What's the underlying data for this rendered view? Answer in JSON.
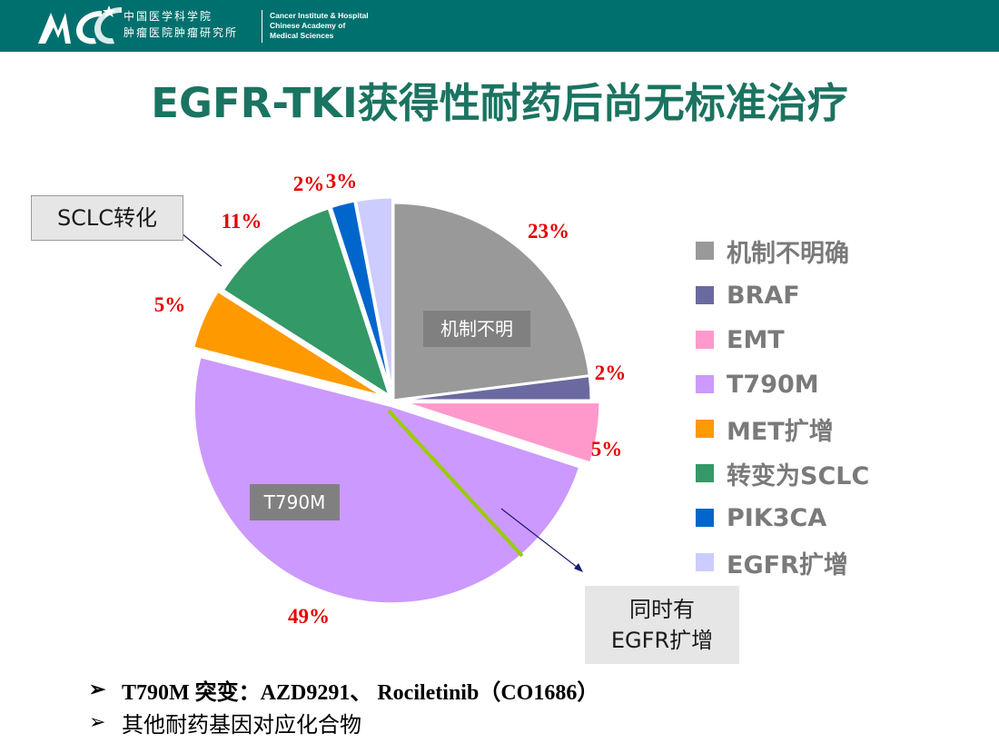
{
  "header": {
    "institution_cn_line1": "中国医学科学院",
    "institution_cn_line2": "肿瘤医院肿瘤研究所",
    "institution_en_line1": "Cancer Institute & Hospital",
    "institution_en_line2": "Chinese Academy of",
    "institution_en_line3": "Medical Sciences",
    "bar_color": "#00706e"
  },
  "slide_title": "EGFR-TKI获得性耐药后尚无标准治疗",
  "chart_data": {
    "type": "pie",
    "slices": [
      {
        "name": "机制不明确",
        "value": 23,
        "label": "23%",
        "color": "#999999"
      },
      {
        "name": "BRAF",
        "value": 2,
        "label": "2%",
        "color": "#6a6aa0"
      },
      {
        "name": "EMT",
        "value": 5,
        "label": "5%",
        "color": "#ff99cc"
      },
      {
        "name": "T790M",
        "value": 49,
        "label": "49%",
        "color": "#cc99ff"
      },
      {
        "name": "MET扩增",
        "value": 5,
        "label": "5%",
        "color": "#ff9900"
      },
      {
        "name": "转变为SCLC",
        "value": 11,
        "label": "11%",
        "color": "#339966"
      },
      {
        "name": "PIK3CA",
        "value": 2,
        "label": "2%",
        "color": "#0066cc"
      },
      {
        "name": "EGFR扩增",
        "value": 3,
        "label": "3%",
        "color": "#ccccff"
      }
    ],
    "legend_position": "right"
  },
  "annotations": {
    "sclc_callout": "SCLC转化",
    "egfr_callout_line1": "同时有",
    "egfr_callout_line2": "EGFR扩增",
    "unknown_inner_label": "机制不明",
    "t790m_inner_label": "T790M"
  },
  "bullets": [
    {
      "marker": "➢",
      "text": "T790M 突变：AZD9291、 Rociletinib（CO1686）"
    },
    {
      "marker": "➢",
      "text": "其他耐药基因对应化合物"
    }
  ]
}
